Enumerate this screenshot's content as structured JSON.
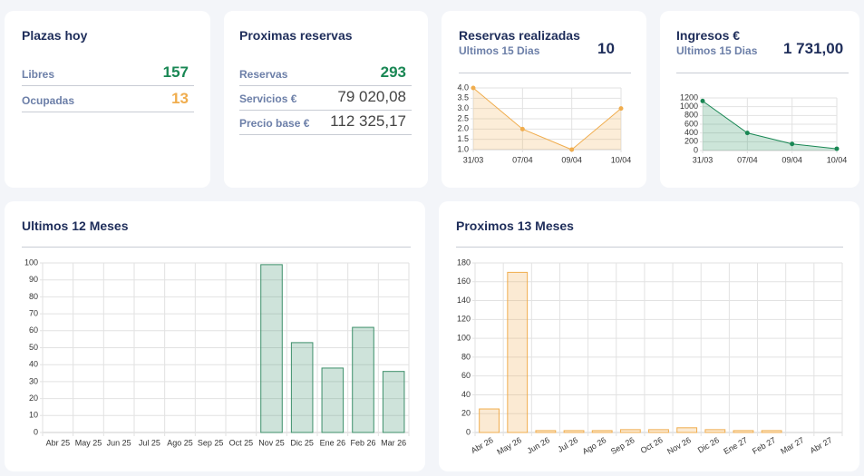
{
  "plazas": {
    "title": "Plazas hoy",
    "rows": [
      {
        "label": "Libres",
        "value": 157
      },
      {
        "label": "Ocupadas",
        "value": 13
      }
    ]
  },
  "proximas": {
    "title": "Proximas reservas",
    "rows": [
      {
        "label": "Reservas",
        "value": 293
      },
      {
        "label": "Servicios €",
        "value": "79 020,08"
      },
      {
        "label": "Precio base €",
        "value": "112 325,17"
      }
    ]
  },
  "realizadas": {
    "chart_data": {
      "type": "line",
      "title": "Reservas realizadas",
      "subtitle": "Ultimos 15 Dias",
      "kpi": 10,
      "color": "#f0ad4e",
      "categories": [
        "31/03",
        "07/04",
        "09/04",
        "10/04"
      ],
      "values": [
        4,
        2,
        1,
        3
      ],
      "ylim": [
        1,
        4
      ],
      "yticks": [
        {
          "value": 1,
          "label": "1.0"
        },
        {
          "value": 1.5,
          "label": "1.5"
        },
        {
          "value": 2,
          "label": "2.0"
        },
        {
          "value": 2.5,
          "label": "2.5"
        },
        {
          "value": 3,
          "label": "3.0"
        },
        {
          "value": 3.5,
          "label": "3.5"
        },
        {
          "value": 4,
          "label": "4.0"
        }
      ],
      "grid": true
    }
  },
  "ingresos": {
    "chart_data": {
      "type": "line",
      "title": "Ingresos €",
      "subtitle": "Ultimos 15 Dias",
      "kpi": "1 731,00",
      "color": "#198754",
      "categories": [
        "31/03",
        "07/04",
        "09/04",
        "10/04"
      ],
      "values": [
        1130,
        400,
        150,
        40
      ],
      "ylim": [
        0,
        1200
      ],
      "yticks": [
        0,
        200,
        400,
        600,
        800,
        1000,
        1200
      ],
      "grid": true
    }
  },
  "ultimos": {
    "chart_data": {
      "type": "bar",
      "title": "Ultimos 12 Meses",
      "color": "#3d8f6a",
      "categories": [
        "Abr 25",
        "May 25",
        "Jun 25",
        "Jul 25",
        "Ago 25",
        "Sep 25",
        "Oct 25",
        "Nov 25",
        "Dic 25",
        "Ene 26",
        "Feb 26",
        "Mar 26"
      ],
      "values": [
        0,
        0,
        0,
        0,
        0,
        0,
        0,
        99,
        53,
        38,
        62,
        36
      ],
      "ylim": [
        0,
        100
      ],
      "yticks": [
        0,
        10,
        20,
        30,
        40,
        50,
        60,
        70,
        80,
        90,
        100
      ],
      "grid": true
    }
  },
  "proximos": {
    "chart_data": {
      "type": "bar",
      "title": "Proximos 13 Meses",
      "color": "#f0ad4e",
      "rotate_labels": true,
      "categories": [
        "Abr 26",
        "May 26",
        "Jun 26",
        "Jul 26",
        "Ago 26",
        "Sep 26",
        "Oct 26",
        "Nov 26",
        "Dic 26",
        "Ene 27",
        "Feb 27",
        "Mar 27",
        "Abr 27"
      ],
      "values": [
        25,
        170,
        2,
        2,
        2,
        3,
        3,
        5,
        3,
        2,
        2,
        0,
        0
      ],
      "ylim": [
        0,
        180
      ],
      "yticks": [
        0,
        20,
        40,
        60,
        80,
        100,
        120,
        140,
        160,
        180
      ],
      "grid": true
    }
  }
}
